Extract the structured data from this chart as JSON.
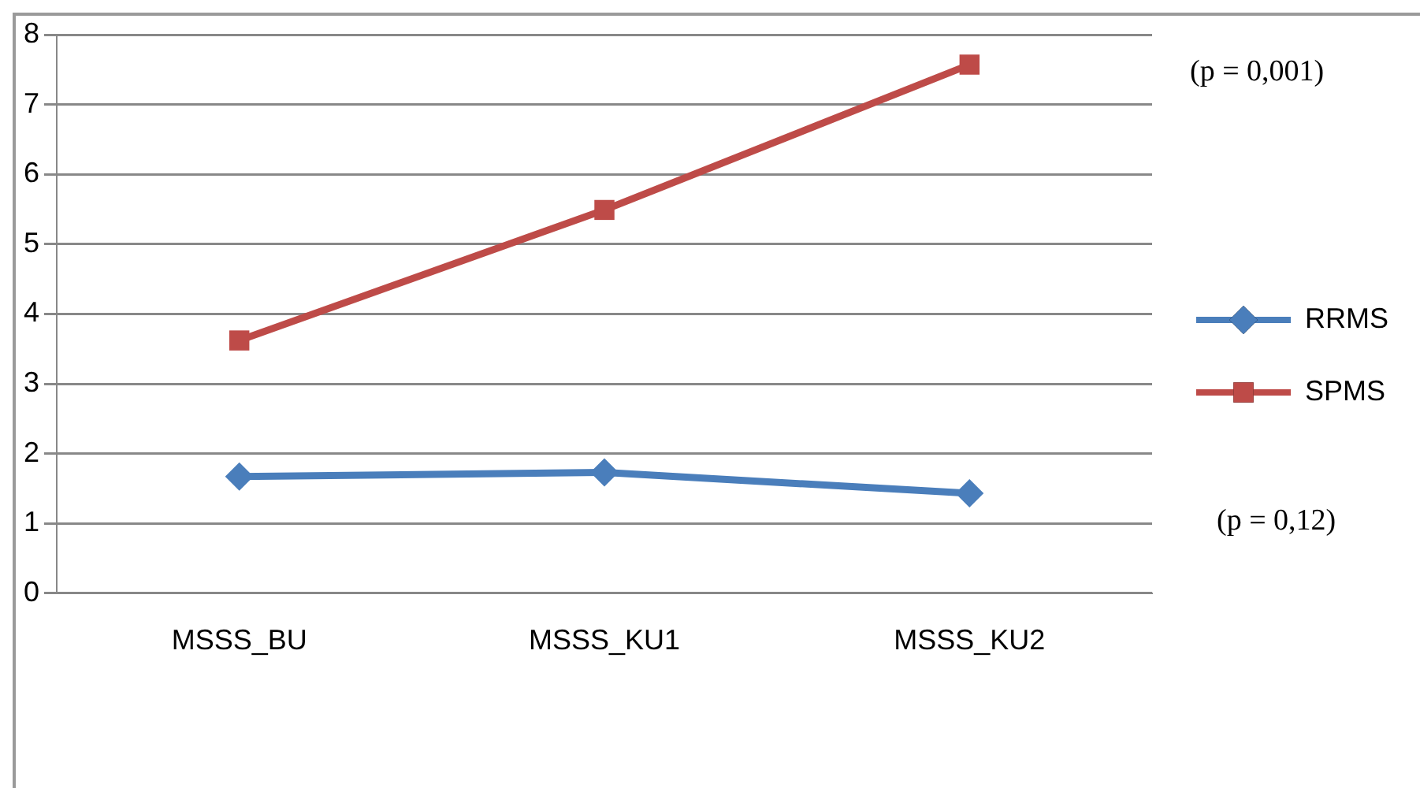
{
  "chart_data": {
    "type": "line",
    "categories": [
      "MSSS_BU",
      "MSSS_KU1",
      "MSSS_KU2"
    ],
    "series": [
      {
        "name": "RRMS",
        "color": "#4a7ebb",
        "values": [
          1.67,
          1.73,
          1.43
        ],
        "marker": "diamond"
      },
      {
        "name": "SPMS",
        "color": "#be4b48",
        "values": [
          3.62,
          5.49,
          7.57
        ],
        "marker": "square"
      }
    ],
    "ylim": [
      0,
      8
    ],
    "yticks": [
      0,
      1,
      2,
      3,
      4,
      5,
      6,
      7,
      8
    ],
    "grid": "y",
    "legend": "right",
    "annotations": [
      "(p = 0,001)",
      "(p = 0,12)"
    ]
  }
}
